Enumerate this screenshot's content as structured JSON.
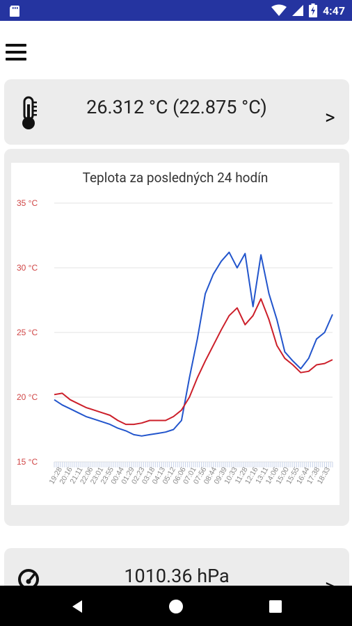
{
  "status_bar": {
    "time": "4:47",
    "icons": [
      "sd-card-icon",
      "wifi-icon",
      "signal-icon",
      "battery-charging-icon"
    ]
  },
  "toolbar": {
    "menu_icon": "hamburger-menu-icon"
  },
  "temperature_card": {
    "icon": "thermometer-icon",
    "value_text": "26.312 °C (22.875 °C)",
    "chevron": ">"
  },
  "pressure_card": {
    "icon": "gauge-icon",
    "value_text": "1010.36 hPa",
    "chevron": ">"
  },
  "colors": {
    "status_bar": "#2534a0",
    "card_bg": "#ececec",
    "series_blue": "#2255cc",
    "series_red": "#cc1f2a",
    "axis_label": "#d04545"
  },
  "chart_data": {
    "type": "line",
    "title": "Teplota za posledných 24 hodín",
    "y_tick_labels": [
      "35 °C",
      "30 °C",
      "25 °C",
      "20 °C",
      "15 °C"
    ],
    "y_ticks": [
      35,
      30,
      25,
      20,
      15
    ],
    "ylim": [
      15,
      35
    ],
    "x_tick_labels": [
      "19:28",
      "20:16",
      "21:11",
      "22:06",
      "23:01",
      "23:55",
      "00:44",
      "01:29",
      "02:23",
      "03:18",
      "04:13",
      "05:12",
      "06:06",
      "07:01",
      "07:56",
      "08:44",
      "09:39",
      "10:33",
      "11:28",
      "12:16",
      "13:11",
      "14:06",
      "15:00",
      "15:55",
      "16:44",
      "17:38",
      "18:33"
    ],
    "grid": true,
    "legend": "none",
    "series": [
      {
        "color": "blue",
        "values": [
          19.8,
          19.4,
          19.1,
          18.8,
          18.5,
          18.3,
          18.1,
          17.9,
          17.6,
          17.4,
          17.1,
          17.0,
          17.1,
          17.2,
          17.3,
          17.5,
          18.2,
          21.5,
          24.5,
          28.0,
          29.5,
          30.5,
          31.2,
          30.0,
          31.1,
          27.0,
          31.0,
          28.0,
          26.0,
          23.5,
          22.8,
          22.2,
          23.0,
          24.5,
          25.0,
          26.4
        ]
      },
      {
        "color": "red",
        "values": [
          20.2,
          20.3,
          19.8,
          19.5,
          19.2,
          19.0,
          18.8,
          18.6,
          18.2,
          17.9,
          17.9,
          18.0,
          18.2,
          18.2,
          18.2,
          18.5,
          19.0,
          20.0,
          21.5,
          22.8,
          24.0,
          25.2,
          26.3,
          26.9,
          25.6,
          26.3,
          27.6,
          26.0,
          24.0,
          23.0,
          22.5,
          21.9,
          22.0,
          22.5,
          22.6,
          22.9
        ]
      }
    ]
  }
}
